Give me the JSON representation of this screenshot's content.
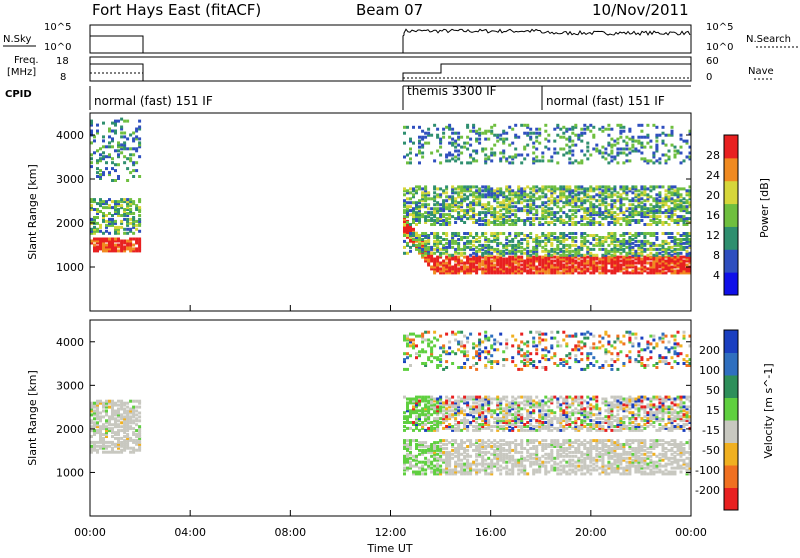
{
  "title": {
    "station": "Fort Hays East (fitACF)",
    "beam": "Beam 07",
    "date": "10/Nov/2011"
  },
  "top_strips": {
    "nsky_label": "N.Sky",
    "nsky_ticks": [
      "10^5",
      "10^0"
    ],
    "nsearch_label": "N.Search",
    "nsearch_ticks": [
      "10^5",
      "10^0"
    ],
    "freq_label_1": "Freq.",
    "freq_label_2": "[MHz]",
    "freq_ticks": [
      "18",
      "8"
    ],
    "nave_label": "Nave",
    "nave_ticks": [
      "60",
      "0"
    ],
    "cpid_label": "CPID",
    "modes": [
      {
        "label": "normal (fast) 151 IF",
        "start": 0.0,
        "end": 2.0
      },
      {
        "label": "themis 3300 IF",
        "start": 12.5,
        "end": 18.0
      },
      {
        "label": "normal (fast) 151 IF",
        "start": 18.0,
        "end": 24.0
      }
    ]
  },
  "x_axis": {
    "label": "Time UT",
    "ticks": [
      "00:00",
      "04:00",
      "08:00",
      "12:00",
      "16:00",
      "20:00",
      "00:00"
    ]
  },
  "chart_data": [
    {
      "type": "heatmap",
      "panel": "power",
      "ylabel": "Slant Range [km]",
      "ylim": [
        0,
        4500
      ],
      "yticks": [
        1000,
        2000,
        3000,
        4000
      ],
      "xlim": [
        0,
        24
      ],
      "colorbar_label": "Power [dB]",
      "colorbar_ticks": [
        "4",
        "8",
        "12",
        "16",
        "20",
        "24",
        "28"
      ],
      "colorbar_colors": [
        "#1010e8",
        "#2f4fbf",
        "#2f8f6f",
        "#6fbf3f",
        "#d6d63a",
        "#f08a20",
        "#e82020"
      ],
      "segments": [
        {
          "start": 0.0,
          "end": 2.0,
          "description_bands": [
            {
              "range": [
                1400,
                1700
              ],
              "level": "high"
            },
            {
              "range": [
                1800,
                2600
              ],
              "level": "medium"
            },
            {
              "range": [
                3000,
                4400
              ],
              "level": "low"
            }
          ]
        },
        {
          "start": 12.5,
          "end": 24.0,
          "description_bands": [
            {
              "range": [
                900,
                1300
              ],
              "level": "high"
            },
            {
              "range": [
                1300,
                1800
              ],
              "level": "medium"
            },
            {
              "range": [
                2000,
                2900
              ],
              "level": "medium"
            },
            {
              "range": [
                3400,
                4300
              ],
              "level": "low"
            }
          ]
        }
      ]
    },
    {
      "type": "heatmap",
      "panel": "velocity",
      "ylabel": "Slant Range [km]",
      "ylim": [
        0,
        4500
      ],
      "yticks": [
        1000,
        2000,
        3000,
        4000
      ],
      "xlim": [
        0,
        24
      ],
      "colorbar_label": "Velocity [m s^-1]",
      "colorbar_ticks": [
        "200",
        "100",
        "50",
        "15",
        "-15",
        "-50",
        "-100",
        "-200"
      ],
      "colorbar_colors": [
        "#1a3fc0",
        "#2f6fbf",
        "#2e8f5a",
        "#5fcf3f",
        "#c8c8c0",
        "#f0b020",
        "#f07020",
        "#e82020"
      ],
      "segments": [
        {
          "start": 0.0,
          "end": 2.0,
          "description_bands": [
            {
              "range": [
                1500,
                2700
              ],
              "level": "ground-scatter"
            }
          ]
        },
        {
          "start": 12.5,
          "end": 24.0,
          "description_bands": [
            {
              "range": [
                1000,
                1800
              ],
              "level": "ground-scatter"
            },
            {
              "range": [
                2000,
                2800
              ],
              "level": "mixed"
            },
            {
              "range": [
                3400,
                4300
              ],
              "level": "low"
            }
          ]
        }
      ]
    }
  ]
}
